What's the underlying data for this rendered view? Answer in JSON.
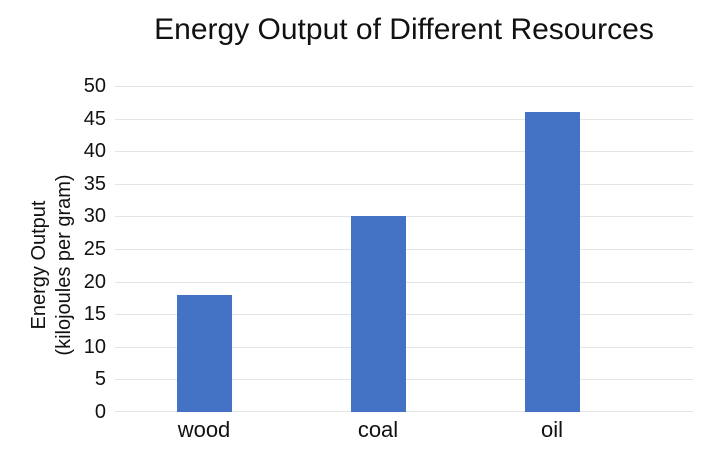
{
  "page": {
    "background": "#ffffff"
  },
  "chart_data": {
    "type": "bar",
    "title": "Energy Output of Different Resources",
    "categories": [
      "wood",
      "coal",
      "oil"
    ],
    "values": [
      18,
      30,
      46
    ],
    "xlabel": "",
    "ylabel_line1": "Energy Output",
    "ylabel_line2": "(kilojoules per gram)",
    "ylim": [
      0,
      50
    ],
    "yticks": [
      0,
      5,
      10,
      15,
      20,
      25,
      30,
      35,
      40,
      45,
      50
    ],
    "grid": true,
    "legend": "none",
    "bar_color": "#4472C4",
    "gridline_color": "#e4e4e4",
    "text_color": "#111111"
  }
}
